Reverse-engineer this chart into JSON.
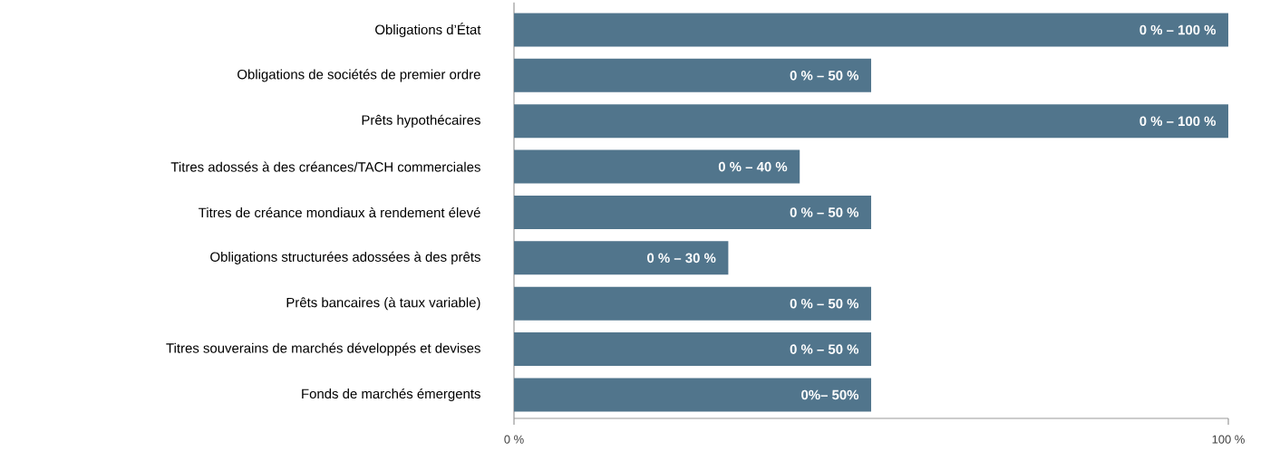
{
  "chart_data": {
    "type": "bar",
    "orientation": "horizontal",
    "categories": [
      "Obligations d’État",
      "Obligations de sociétés de premier ordre",
      "Prêts hypothécaires",
      "Titres adossés à des créances/TACH commerciales",
      "Titres de créance mondiaux à rendement élevé",
      "Obligations structurées adossées à des prêts",
      "Prêts bancaires (à taux variable)",
      "Titres souverains de marchés développés et devises",
      "Fonds de marchés émergents"
    ],
    "values": [
      100,
      50,
      100,
      40,
      50,
      30,
      50,
      50,
      50
    ],
    "base": [
      0,
      0,
      0,
      0,
      0,
      0,
      0,
      0,
      0
    ],
    "annotations": [
      {
        "text": "0 % – 100 %",
        "x": 100,
        "y": "Obligations d’État"
      },
      {
        "text": "0 % – 50 %",
        "x": 50,
        "y": "Obligations de sociétés de premier ordre"
      },
      {
        "text": "0 % – 100 %",
        "x": 100,
        "y": "Prêts hypothécaires"
      },
      {
        "text": "0 % – 40 %",
        "x": 40,
        "y": "Titres adossés à des créances/TACH commerciales"
      },
      {
        "text": "0 % – 50 %",
        "x": 50,
        "y": "Titres de créance mondiaux à rendement élevé"
      },
      {
        "text": "0 % – 30 %",
        "x": 30,
        "y": "Obligations structurées adossées à des prêts"
      },
      {
        "text": "0 % – 50 %",
        "x": 50,
        "y": "Prêts bancaires (à taux variable)"
      },
      {
        "text": "0 % – 50 %",
        "x": 50,
        "y": "Titres souverains de marchés développés et devises"
      },
      {
        "text": "0%– 50%",
        "x": 50,
        "y": "Fonds de marchés émergents"
      }
    ],
    "color": "#51758c",
    "xlim": [
      0,
      100
    ],
    "xticks": [
      {
        "value": 0,
        "label": "0 %"
      },
      {
        "value": 100,
        "label": "100 %"
      }
    ]
  }
}
